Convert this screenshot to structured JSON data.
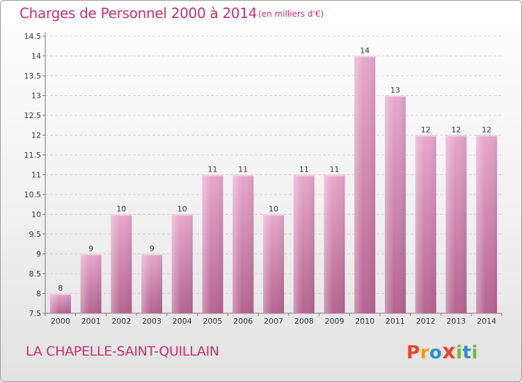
{
  "header": {
    "title": "Charges de Personnel 2000 à 2014",
    "subtitle": "(en milliers d'€)"
  },
  "footer": {
    "commune": "LA CHAPELLE-SAINT-QUILLAIN",
    "logo": "Proxiti",
    "logo_colors": [
      "#e8452c",
      "#f39c12",
      "#2a8fd6",
      "#e8452c",
      "#6cbf2c",
      "#2a8fd6",
      "#6cbf2c"
    ]
  },
  "chart_data": {
    "type": "bar",
    "title": "Charges de Personnel 2000 à 2014",
    "subtitle": "(en milliers d'€)",
    "categories": [
      "2000",
      "2001",
      "2002",
      "2003",
      "2004",
      "2005",
      "2006",
      "2007",
      "2008",
      "2009",
      "2010",
      "2011",
      "2012",
      "2013",
      "2014"
    ],
    "values": [
      8,
      9,
      10,
      9,
      10,
      11,
      11,
      10,
      11,
      11,
      14,
      13,
      12,
      12,
      12
    ],
    "data_labels": [
      "8",
      "9",
      "10",
      "9",
      "10",
      "11",
      "11",
      "10",
      "11",
      "11",
      "14",
      "13",
      "12",
      "12",
      "12"
    ],
    "yticks": [
      "7.5",
      "8",
      "8.5",
      "9",
      "9.5",
      "10",
      "10.5",
      "11",
      "11.5",
      "12",
      "12.5",
      "13",
      "13.5",
      "14",
      "14.5"
    ],
    "ylim": [
      7.5,
      14.5
    ],
    "grid": true,
    "bar_color": "#d98bb6"
  }
}
